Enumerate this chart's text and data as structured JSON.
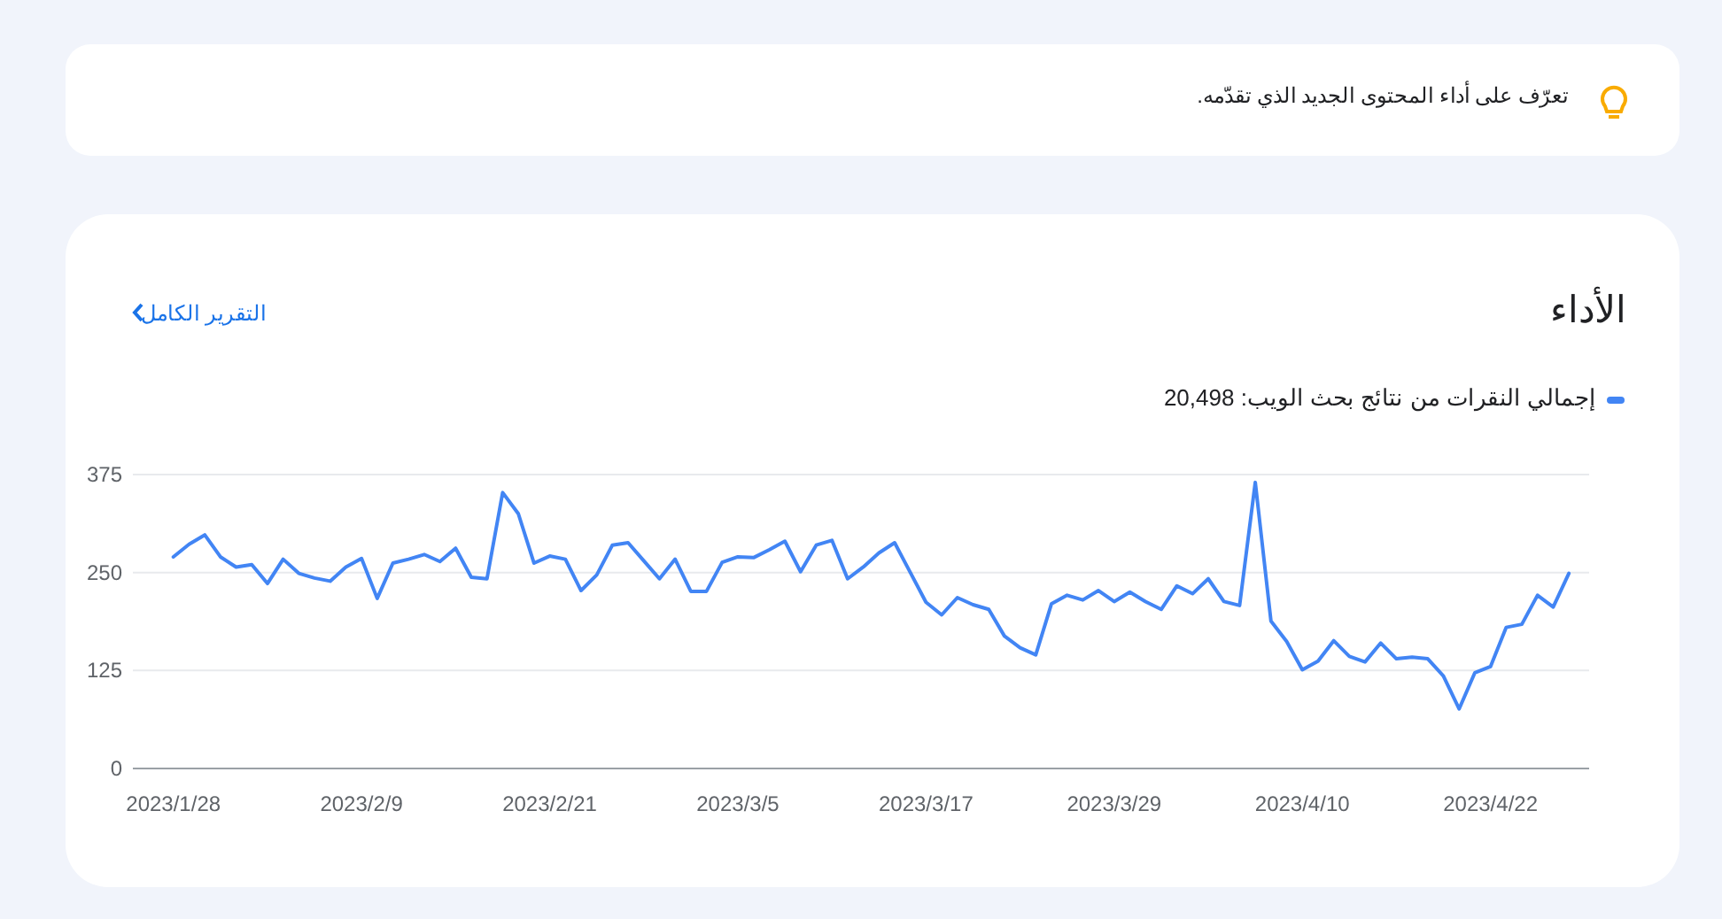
{
  "chart_data": {
    "type": "line",
    "title": "الأداء",
    "annotations": [
      "تعرّف على أداء المحتوى الجديد الذي تقدّمه.",
      "التقرير الكامل"
    ],
    "x": [
      "2023-01-28",
      "2023-01-29",
      "2023-01-30",
      "2023-01-31",
      "2023-02-01",
      "2023-02-02",
      "2023-02-03",
      "2023-02-04",
      "2023-02-05",
      "2023-02-06",
      "2023-02-07",
      "2023-02-08",
      "2023-02-09",
      "2023-02-10",
      "2023-02-11",
      "2023-02-12",
      "2023-02-13",
      "2023-02-14",
      "2023-02-15",
      "2023-02-16",
      "2023-02-17",
      "2023-02-18",
      "2023-02-19",
      "2023-02-20",
      "2023-02-21",
      "2023-02-22",
      "2023-02-23",
      "2023-02-24",
      "2023-02-25",
      "2023-02-26",
      "2023-02-27",
      "2023-02-28",
      "2023-03-01",
      "2023-03-02",
      "2023-03-03",
      "2023-03-04",
      "2023-03-05",
      "2023-03-06",
      "2023-03-07",
      "2023-03-08",
      "2023-03-09",
      "2023-03-10",
      "2023-03-11",
      "2023-03-12",
      "2023-03-13",
      "2023-03-14",
      "2023-03-15",
      "2023-03-16",
      "2023-03-17",
      "2023-03-18",
      "2023-03-19",
      "2023-03-20",
      "2023-03-21",
      "2023-03-22",
      "2023-03-23",
      "2023-03-24",
      "2023-03-25",
      "2023-03-26",
      "2023-03-27",
      "2023-03-28",
      "2023-03-29",
      "2023-03-30",
      "2023-03-31",
      "2023-04-01",
      "2023-04-02",
      "2023-04-03",
      "2023-04-04",
      "2023-04-05",
      "2023-04-06",
      "2023-04-07",
      "2023-04-08",
      "2023-04-09",
      "2023-04-10",
      "2023-04-11",
      "2023-04-12",
      "2023-04-13",
      "2023-04-14",
      "2023-04-15",
      "2023-04-16",
      "2023-04-17",
      "2023-04-18",
      "2023-04-19",
      "2023-04-20",
      "2023-04-21",
      "2023-04-22",
      "2023-04-23",
      "2023-04-24",
      "2023-04-25",
      "2023-04-26",
      "2023-04-27"
    ],
    "series": [
      {
        "name": "إجمالي النقرات من نتائج بحث الويب: 20,498",
        "color": "#4285f4",
        "values": [
          270,
          286,
          298,
          270,
          257,
          260,
          236,
          267,
          249,
          243,
          239,
          257,
          268,
          217,
          262,
          267,
          273,
          264,
          281,
          244,
          242,
          352,
          325,
          262,
          271,
          267,
          227,
          247,
          285,
          288,
          265,
          242,
          267,
          226,
          226,
          263,
          270,
          269,
          279,
          290,
          251,
          285,
          291,
          242,
          257,
          275,
          288,
          250,
          212,
          196,
          218,
          209,
          203,
          169,
          154,
          145,
          210,
          221,
          215,
          227,
          213,
          225,
          213,
          203,
          233,
          223,
          242,
          213,
          208,
          365,
          188,
          162,
          126,
          137,
          163,
          143,
          136,
          160,
          140,
          142,
          140,
          118,
          76,
          122,
          130,
          180,
          184,
          221,
          206,
          249
        ]
      }
    ],
    "xlim": [
      "2023-01-25T10:00",
      "2023-04-28T07:00"
    ],
    "xticks": [
      {
        "value": "2023-01-28",
        "label": "2023/1/28"
      },
      {
        "value": "2023-02-09",
        "label": "2023/2/9"
      },
      {
        "value": "2023-02-21",
        "label": "2023/2/21"
      },
      {
        "value": "2023-03-05",
        "label": "2023/3/5"
      },
      {
        "value": "2023-03-17",
        "label": "2023/3/17"
      },
      {
        "value": "2023-03-29",
        "label": "2023/3/29"
      },
      {
        "value": "2023-04-10",
        "label": "2023/4/10"
      },
      {
        "value": "2023-04-22",
        "label": "2023/4/22"
      }
    ],
    "ylim": [
      0,
      375
    ],
    "yticks": [
      0,
      125,
      250,
      375
    ],
    "grid": "y",
    "legend": "top right",
    "marker": "none",
    "line_style": "solid"
  }
}
